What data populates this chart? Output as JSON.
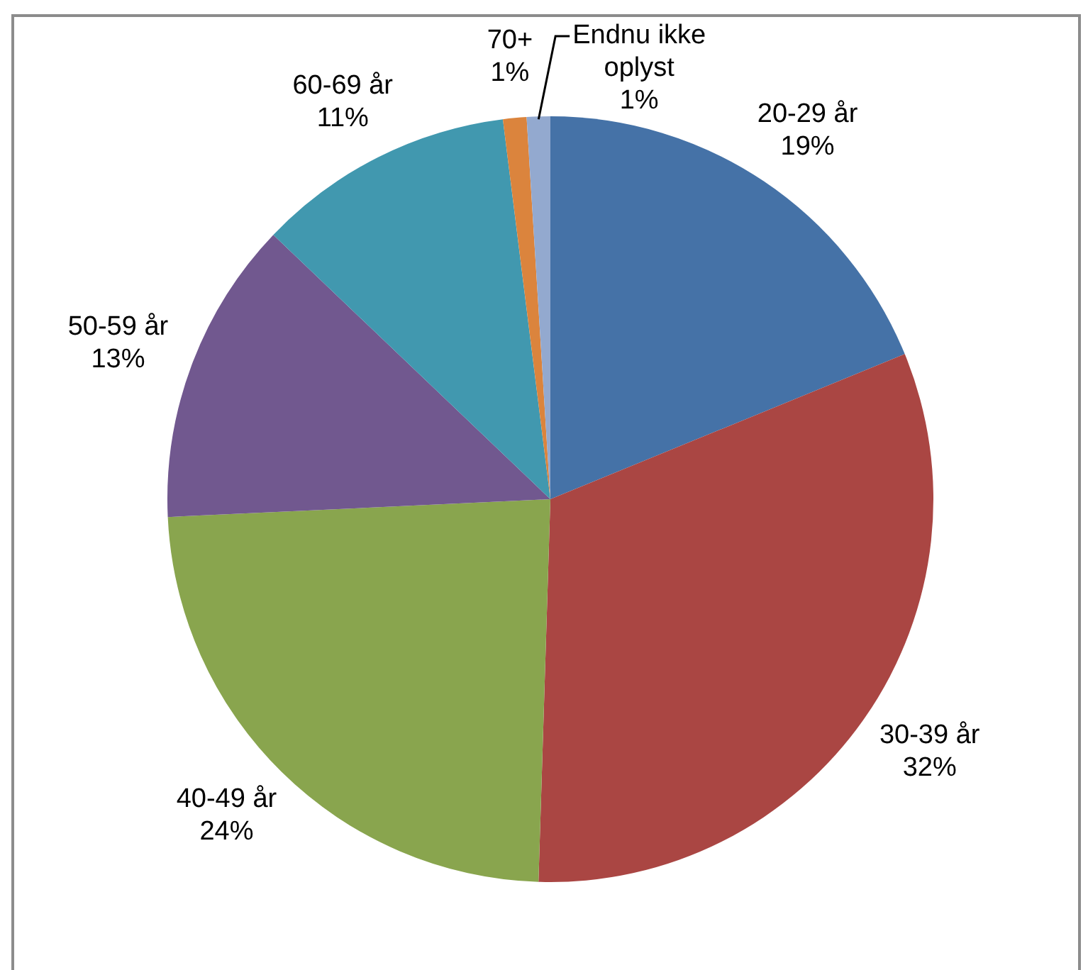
{
  "chart_data": {
    "type": "pie",
    "categories": [
      "20-29 år",
      "30-39 år",
      "40-49 år",
      "50-59 år",
      "60-69 år",
      "70+",
      "Endnu ikke oplyst"
    ],
    "values": [
      19,
      32,
      24,
      13,
      11,
      1,
      1
    ],
    "value_labels": [
      "19%",
      "32%",
      "24%",
      "13%",
      "11%",
      "1%",
      "1%"
    ],
    "colors": [
      "#4572a7",
      "#aa4643",
      "#89a54e",
      "#71588f",
      "#4198af",
      "#db843d",
      "#93a9cf"
    ]
  }
}
